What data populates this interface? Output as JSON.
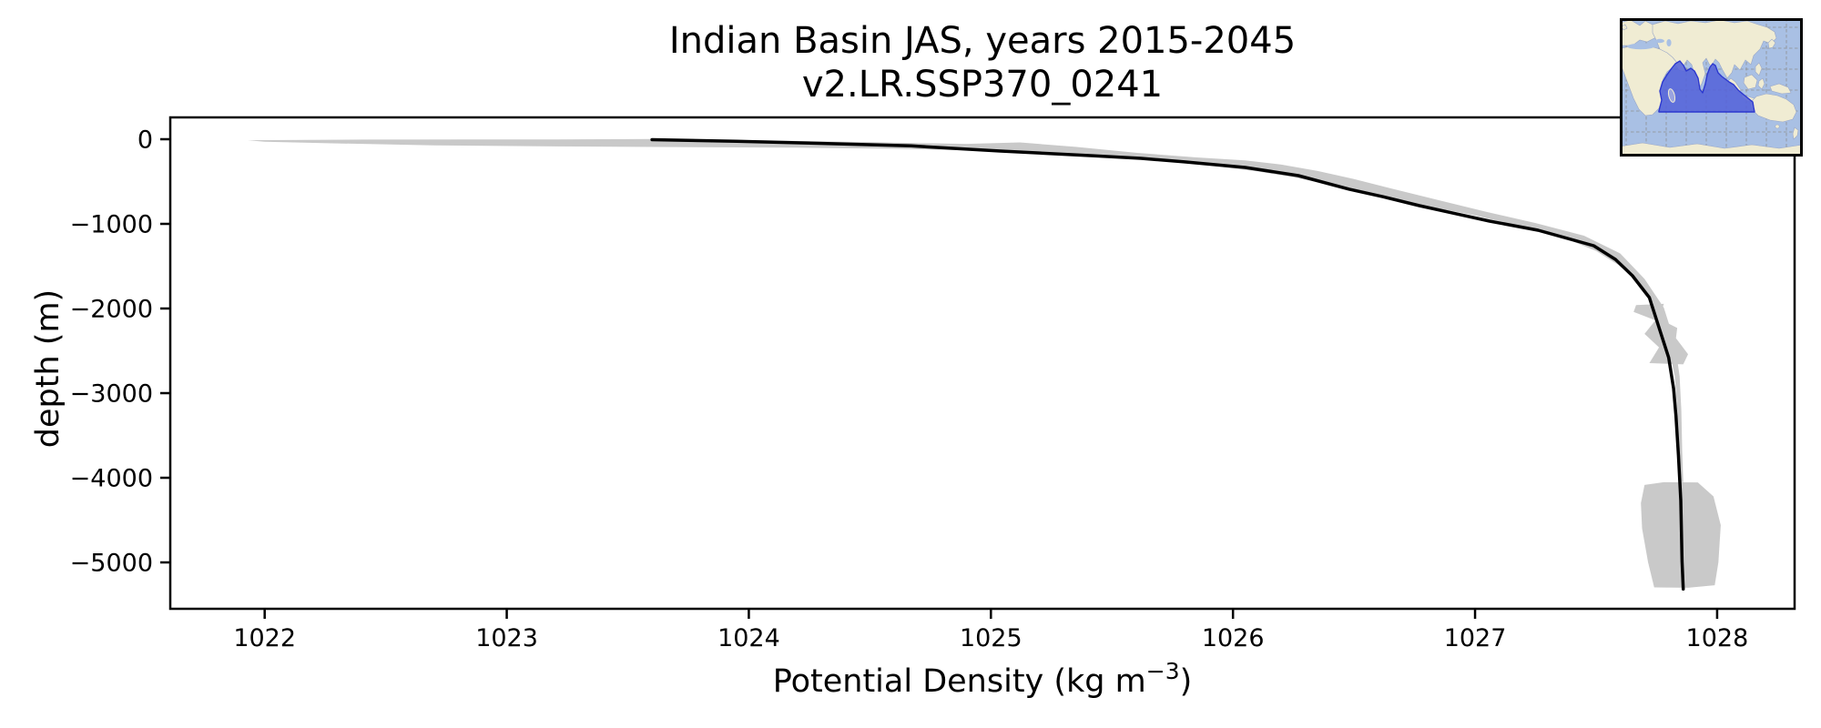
{
  "page": {
    "background": "#ffffff"
  },
  "chart_data": {
    "type": "line",
    "title_lines": [
      "Indian Basin JAS, years 2015-2045",
      "v2.LR.SSP370_0241"
    ],
    "xlabel_parts": {
      "main": "Potential Density (kg m",
      "sup": "−3",
      "close": ")"
    },
    "xlabel": "Potential Density (kg m−3)",
    "ylabel": "depth (m)",
    "xlim": [
      1021.61,
      1028.32
    ],
    "ylim": [
      -5548,
      258
    ],
    "grid": false,
    "legend_position": "none",
    "xticks": [
      {
        "value": 1022,
        "label": "1022"
      },
      {
        "value": 1023,
        "label": "1023"
      },
      {
        "value": 1024,
        "label": "1024"
      },
      {
        "value": 1025,
        "label": "1025"
      },
      {
        "value": 1026,
        "label": "1026"
      },
      {
        "value": 1027,
        "label": "1027"
      },
      {
        "value": 1028,
        "label": "1028"
      }
    ],
    "yticks": [
      {
        "value": 0,
        "label": "0"
      },
      {
        "value": -1000,
        "label": "−1000"
      },
      {
        "value": -2000,
        "label": "−2000"
      },
      {
        "value": -3000,
        "label": "−3000"
      },
      {
        "value": -4000,
        "label": "−4000"
      },
      {
        "value": -5000,
        "label": "−5000"
      }
    ],
    "series": [
      {
        "name": "mean potential density profile",
        "color": "#000000",
        "linewidth": 3.5,
        "points": [
          [
            1023.6,
            -5
          ],
          [
            1023.75,
            -14
          ],
          [
            1023.95,
            -25
          ],
          [
            1024.29,
            -48
          ],
          [
            1024.67,
            -78
          ],
          [
            1025.04,
            -140
          ],
          [
            1025.42,
            -195
          ],
          [
            1025.62,
            -226
          ],
          [
            1025.8,
            -268
          ],
          [
            1026.05,
            -333
          ],
          [
            1026.27,
            -430
          ],
          [
            1026.48,
            -590
          ],
          [
            1026.62,
            -680
          ],
          [
            1026.77,
            -785
          ],
          [
            1026.92,
            -880
          ],
          [
            1027.06,
            -968
          ],
          [
            1027.26,
            -1075
          ],
          [
            1027.49,
            -1258
          ],
          [
            1027.58,
            -1420
          ],
          [
            1027.65,
            -1613
          ],
          [
            1027.72,
            -1871
          ],
          [
            1027.76,
            -2226
          ],
          [
            1027.8,
            -2581
          ],
          [
            1027.82,
            -2946
          ],
          [
            1027.83,
            -3269
          ],
          [
            1027.84,
            -3731
          ],
          [
            1027.85,
            -4269
          ],
          [
            1027.855,
            -4989
          ],
          [
            1027.86,
            -5315
          ]
        ]
      }
    ],
    "uncertainty_band": {
      "color": "#c9c9c9",
      "main_polygon": [
        [
          1021.93,
          -12
        ],
        [
          1022.4,
          -4
        ],
        [
          1023.2,
          -2
        ],
        [
          1023.62,
          2
        ],
        [
          1024.1,
          -15
        ],
        [
          1024.5,
          -35
        ],
        [
          1024.9,
          -55
        ],
        [
          1025.12,
          -38
        ],
        [
          1025.35,
          -90
        ],
        [
          1025.6,
          -160
        ],
        [
          1025.85,
          -215
        ],
        [
          1026.05,
          -250
        ],
        [
          1026.2,
          -300
        ],
        [
          1026.35,
          -375
        ],
        [
          1026.5,
          -470
        ],
        [
          1026.65,
          -580
        ],
        [
          1026.85,
          -720
        ],
        [
          1027.05,
          -860
        ],
        [
          1027.25,
          -990
        ],
        [
          1027.45,
          -1140
        ],
        [
          1027.6,
          -1350
        ],
        [
          1027.7,
          -1650
        ],
        [
          1027.78,
          -1990
        ],
        [
          1027.825,
          -2400
        ],
        [
          1027.845,
          -2800
        ],
        [
          1027.852,
          -3200
        ],
        [
          1027.856,
          -3700
        ],
        [
          1027.86,
          -4050
        ],
        [
          1027.845,
          -4050
        ],
        [
          1027.84,
          -3700
        ],
        [
          1027.835,
          -3200
        ],
        [
          1027.825,
          -2800
        ],
        [
          1027.8,
          -2450
        ],
        [
          1027.765,
          -2150
        ],
        [
          1027.73,
          -1900
        ],
        [
          1027.67,
          -1680
        ],
        [
          1027.6,
          -1500
        ],
        [
          1027.5,
          -1320
        ],
        [
          1027.38,
          -1180
        ],
        [
          1027.2,
          -1040
        ],
        [
          1027.0,
          -900
        ],
        [
          1026.8,
          -790
        ],
        [
          1026.62,
          -680
        ],
        [
          1026.48,
          -600
        ],
        [
          1026.37,
          -520
        ],
        [
          1026.25,
          -450
        ],
        [
          1026.1,
          -380
        ],
        [
          1025.9,
          -310
        ],
        [
          1025.7,
          -255
        ],
        [
          1025.5,
          -215
        ],
        [
          1025.25,
          -170
        ],
        [
          1025.0,
          -138
        ],
        [
          1024.6,
          -112
        ],
        [
          1024.2,
          -100
        ],
        [
          1023.7,
          -92
        ],
        [
          1023.2,
          -85
        ],
        [
          1022.7,
          -72
        ],
        [
          1022.3,
          -50
        ],
        [
          1022.0,
          -30
        ]
      ],
      "mid_depth_patch": [
        [
          1027.665,
          -1960
        ],
        [
          1027.78,
          -1945
        ],
        [
          1027.76,
          -2120
        ],
        [
          1027.835,
          -2230
        ],
        [
          1027.83,
          -2350
        ],
        [
          1027.88,
          -2540
        ],
        [
          1027.86,
          -2660
        ],
        [
          1027.72,
          -2645
        ],
        [
          1027.76,
          -2460
        ],
        [
          1027.7,
          -2300
        ],
        [
          1027.745,
          -2140
        ],
        [
          1027.655,
          -2040
        ]
      ],
      "deep_patch": [
        [
          1027.7,
          -4085
        ],
        [
          1027.78,
          -4052
        ],
        [
          1027.92,
          -4055
        ],
        [
          1027.985,
          -4220
        ],
        [
          1028.015,
          -4560
        ],
        [
          1028.005,
          -5000
        ],
        [
          1027.99,
          -5270
        ],
        [
          1027.88,
          -5300
        ],
        [
          1027.74,
          -5295
        ],
        [
          1027.715,
          -5000
        ],
        [
          1027.69,
          -4600
        ],
        [
          1027.685,
          -4300
        ]
      ]
    },
    "inset_map": {
      "highlighted_region": "Indian Basin",
      "colors": {
        "ocean": "#a9c0e4",
        "land": "#f0ecd3",
        "land_edge": "#9aa7c7",
        "basin_fill": "#5463d9",
        "basin_edge": "#2c38cf",
        "grid": "#8f8f8f",
        "border": "#000000"
      }
    }
  }
}
